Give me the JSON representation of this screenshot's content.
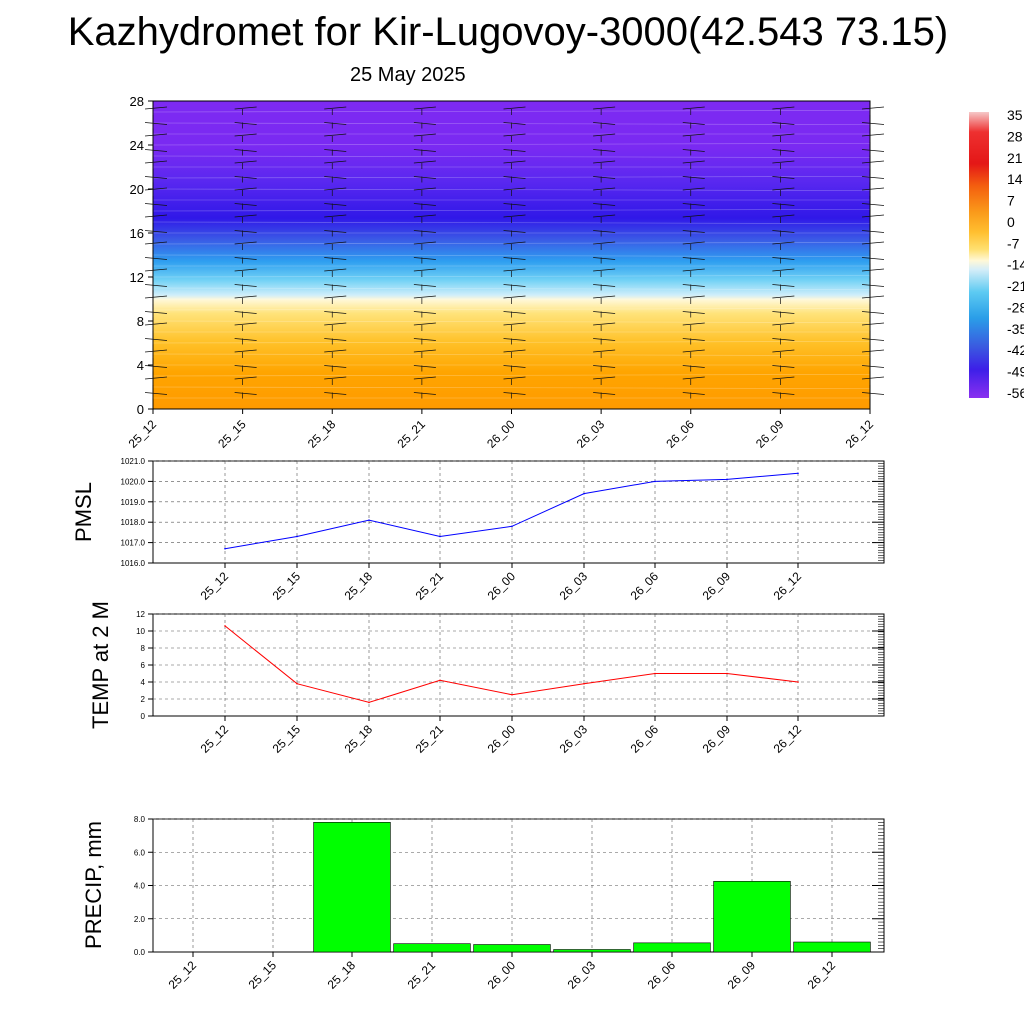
{
  "title": "Kazhydromet for Kir-Lugovoy-3000(42.543 73.15)",
  "subtitle": "25 May 2025",
  "chart_data": [
    {
      "type": "heatmap",
      "description_values": "temperature cross-section",
      "y_ticks": [
        "0",
        "4",
        "8",
        "12",
        "16",
        "20",
        "24",
        "28"
      ],
      "ylim": [
        0,
        28
      ],
      "x_ticks": [
        "25_12",
        "25_15",
        "25_18",
        "25_21",
        "26_00",
        "26_03",
        "26_06",
        "26_09",
        "26_12"
      ],
      "colorbar_labels": [
        "35",
        "28",
        "21",
        "14",
        "7",
        "0",
        "-7",
        "-14",
        "-21",
        "-28",
        "-35",
        "-42",
        "-49",
        "-56"
      ],
      "colorbar_colors": [
        "#f6b8b8",
        "#ee2a2a",
        "#e41717",
        "#f05a10",
        "#f7921a",
        "#ffb22a",
        "#ffd34a",
        "#fff4b0",
        "#d6eef8",
        "#66ccf0",
        "#2a9ee8",
        "#3a5ae0",
        "#3d1fe8",
        "#7a28f0"
      ]
    },
    {
      "type": "line",
      "ylabel": "PMSL",
      "x": [
        "25_12",
        "25_15",
        "25_18",
        "25_21",
        "26_00",
        "26_03",
        "26_06",
        "26_09",
        "26_12"
      ],
      "values": [
        1016.7,
        1017.3,
        1018.1,
        1017.3,
        1017.8,
        1019.4,
        1020.0,
        1020.1,
        1020.4
      ],
      "y_ticks": [
        "1016.0",
        "1017.0",
        "1018.0",
        "1019.0",
        "1020.0",
        "1021.0"
      ],
      "ylim": [
        1016,
        1021
      ],
      "color": "#0000ff"
    },
    {
      "type": "line",
      "ylabel": "TEMP at 2 M",
      "x": [
        "25_12",
        "25_15",
        "25_18",
        "25_21",
        "26_00",
        "26_03",
        "26_06",
        "26_09",
        "26_12"
      ],
      "values": [
        10.6,
        3.8,
        1.6,
        4.2,
        2.5,
        3.8,
        5.0,
        5.0,
        4.0
      ],
      "y_ticks": [
        "0",
        "2",
        "4",
        "6",
        "8",
        "10",
        "12"
      ],
      "ylim": [
        0,
        12
      ],
      "color": "#ff0000"
    },
    {
      "type": "bar",
      "ylabel": "PRECIP, mm",
      "categories": [
        "25_12",
        "25_15",
        "25_18",
        "25_21",
        "26_00",
        "26_03",
        "26_06",
        "26_09",
        "26_12"
      ],
      "values": [
        0,
        0,
        7.8,
        0.5,
        0.45,
        0.15,
        0.55,
        4.25,
        0.6
      ],
      "y_ticks": [
        "0.0",
        "2.0",
        "4.0",
        "6.0",
        "8.0"
      ],
      "ylim": [
        0,
        8
      ],
      "color": "#00ff00"
    }
  ]
}
